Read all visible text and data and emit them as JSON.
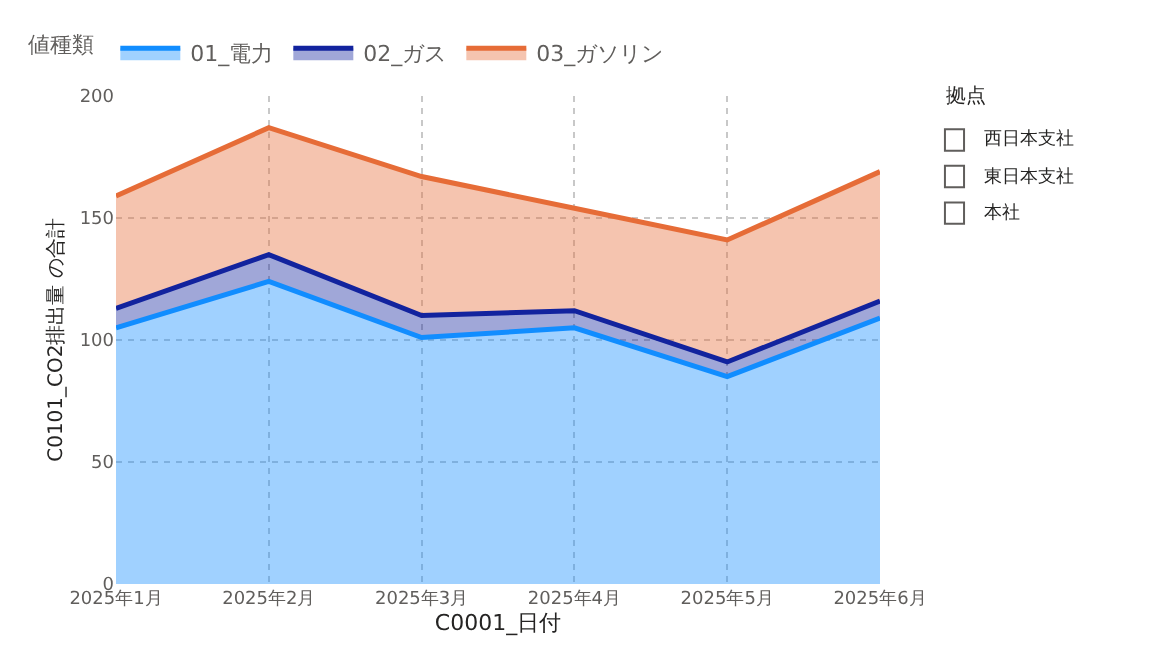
{
  "chart_data": [
    {
      "type": "area",
      "stacked": true,
      "xlabel": "C0001_日付",
      "ylabel": "C0101_CO2排出量 の合計",
      "legend_title": "値種類",
      "legend": "top left",
      "grid": true,
      "line_style": "solid",
      "marker": "none",
      "categories": [
        "2025年1月",
        "2025年2月",
        "2025年3月",
        "2025年4月",
        "2025年5月",
        "2025年6月"
      ],
      "ylim": [
        0,
        200
      ],
      "yticks": [
        0,
        50,
        100,
        150,
        200
      ],
      "series": [
        {
          "name": "01_電力",
          "color": "#118dff",
          "values": [
            105,
            124,
            101,
            105,
            85,
            109
          ]
        },
        {
          "name": "02_ガス",
          "color": "#12239e",
          "values": [
            8,
            11,
            9,
            7,
            6,
            7
          ]
        },
        {
          "name": "03_ガソリン",
          "color": "#e66c37",
          "values": [
            46,
            52,
            57,
            42,
            50,
            53
          ]
        }
      ]
    },
    {
      "type": "other",
      "title": "拠点",
      "annotations": [
        "西日本支社",
        "東日本支社",
        "本社"
      ]
    }
  ]
}
